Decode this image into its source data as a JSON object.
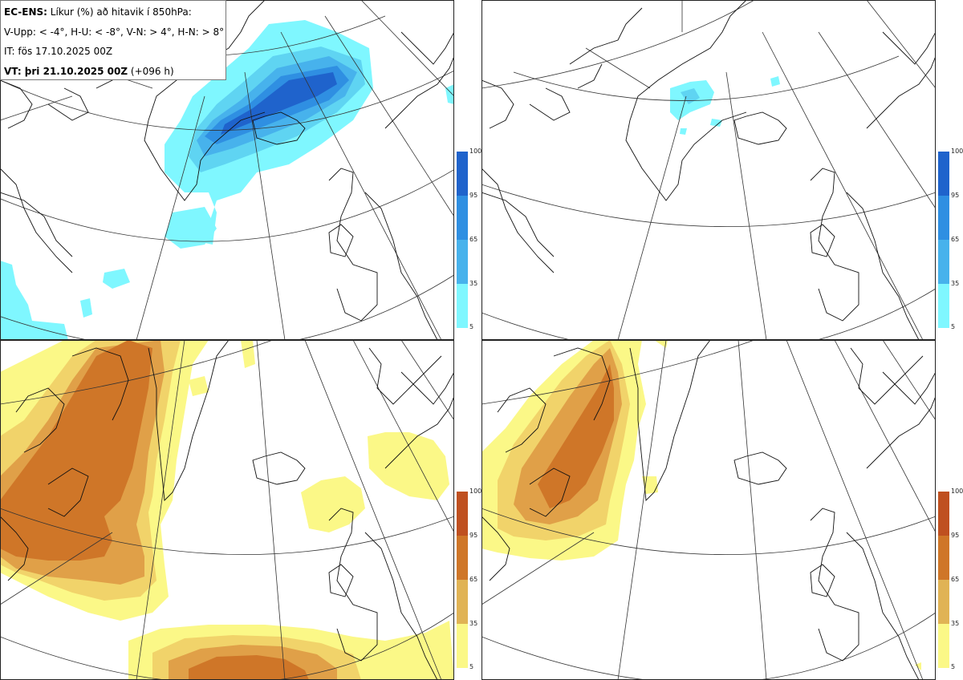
{
  "header": {
    "line1_model": "EC-ENS:",
    "line1_text": "Líkur (%) að hitavik í 850hPa:",
    "line2": "V-Upp: < -4°, H-U: < -8°, V-N: > 4°, H-N: > 8°",
    "line3": "IT: fös 17.10.2025 00Z",
    "line4_label": "VT: þri 21.10.2025 00Z",
    "line4_lead": "(+096 h)"
  },
  "panels": [
    {
      "id": "V-Upp",
      "palette": "blue"
    },
    {
      "id": "H-U",
      "palette": "blue"
    },
    {
      "id": "V-N",
      "palette": "orange"
    },
    {
      "id": "H-N",
      "palette": "orange"
    }
  ],
  "colorbar_ticks": [
    "100",
    "95",
    "65",
    "35",
    "5"
  ],
  "colors": {
    "blue": [
      "#7ff7ff",
      "#5fd4f2",
      "#47b2ec",
      "#2f8fe2",
      "#1f63cc"
    ],
    "orange": [
      "#fbf887",
      "#f1d36a",
      "#e0a048",
      "#cf7628",
      "#bf5020"
    ]
  }
}
